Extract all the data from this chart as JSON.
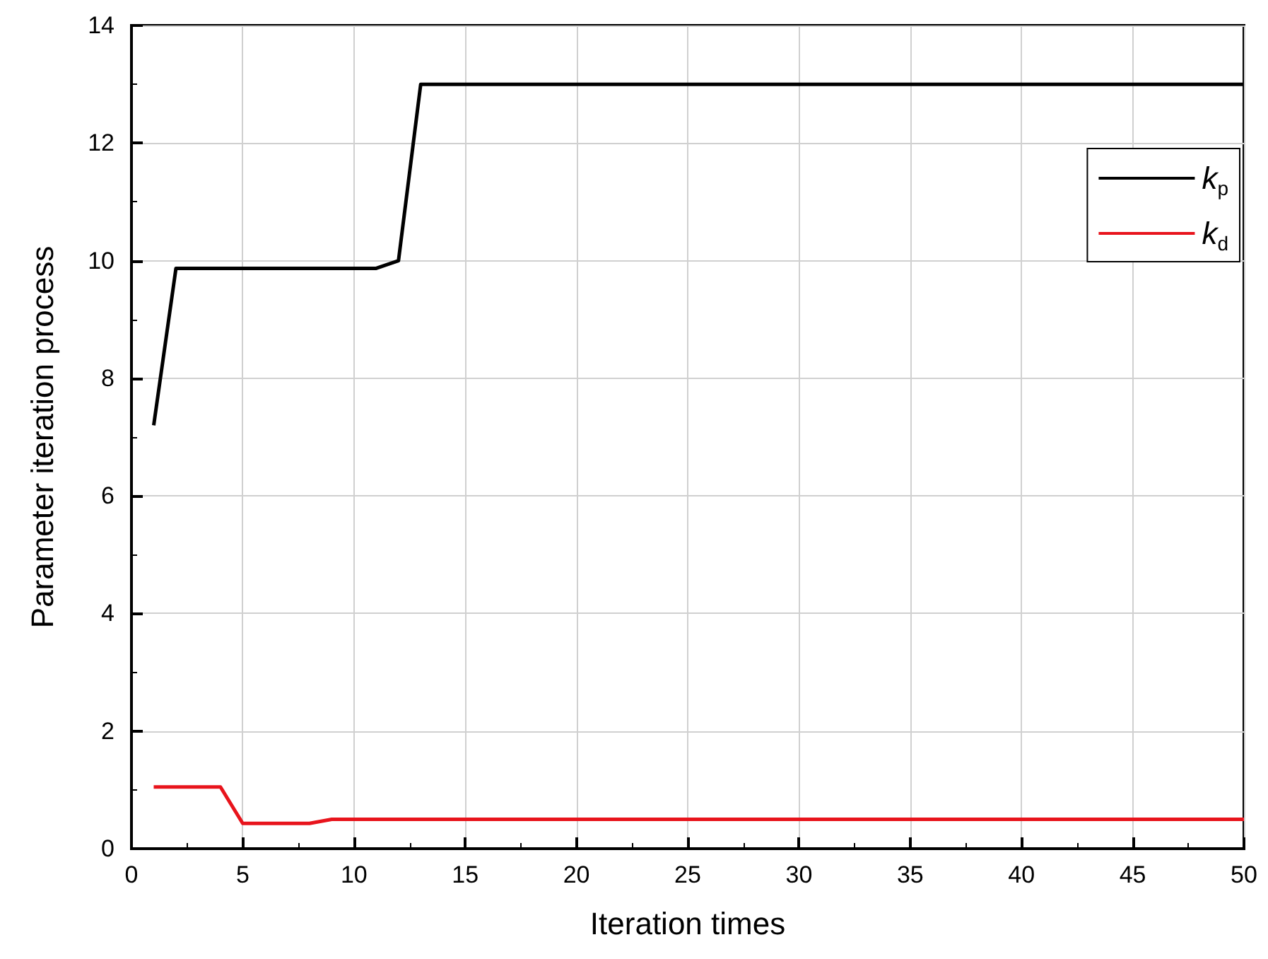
{
  "chart_data": {
    "type": "line",
    "xlabel": "Iteration times",
    "ylabel": "Parameter iteration process",
    "xlim": [
      0,
      50
    ],
    "xticks": [
      0,
      5,
      10,
      15,
      20,
      25,
      30,
      35,
      40,
      45,
      50
    ],
    "ylim": [
      0,
      14
    ],
    "yticks": [
      0,
      2,
      4,
      6,
      8,
      10,
      12,
      14
    ],
    "grid": true,
    "legend": "top right",
    "marker": "none",
    "line_style": "solid",
    "series": [
      {
        "name": "k$_{p}$",
        "color": "#000000",
        "x": [
          1,
          2,
          11,
          12,
          13,
          50
        ],
        "values": [
          7.2,
          9.87,
          9.87,
          10.0,
          13,
          13
        ]
      },
      {
        "name": "k$_{d}$",
        "color": "#e8141c",
        "x": [
          1,
          4,
          5,
          8,
          9,
          50
        ],
        "values": [
          1.05,
          1.05,
          0.43,
          0.43,
          0.5,
          0.5
        ]
      }
    ]
  }
}
